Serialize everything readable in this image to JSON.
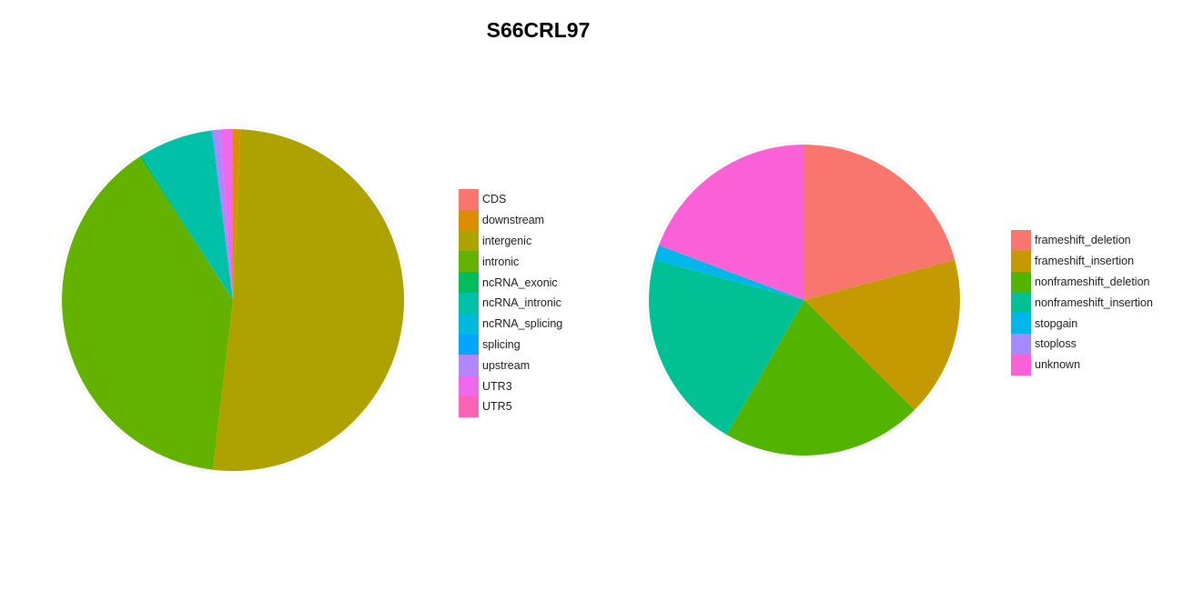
{
  "title": "S66CRL97",
  "chart_data": [
    {
      "type": "pie",
      "title": "",
      "labels": [
        "CDS",
        "downstream",
        "intergenic",
        "intronic",
        "ncRNA_exonic",
        "ncRNA_intronic",
        "ncRNA_splicing",
        "splicing",
        "upstream",
        "UTR3",
        "UTR5"
      ],
      "values": [
        0.0,
        0.7,
        50.7,
        38.6,
        0.2,
        6.9,
        0.1,
        0.0,
        0.7,
        1.2,
        0.0
      ],
      "colors": [
        "#F8766D",
        "#DB8E00",
        "#AEA200",
        "#64B200",
        "#00BD5C",
        "#00C1A7",
        "#00BADE",
        "#00A6FF",
        "#B385FF",
        "#EF67EB",
        "#FF63B6"
      ],
      "legend": "right"
    },
    {
      "type": "pie",
      "title": "",
      "labels": [
        "frameshift_deletion",
        "frameshift_insertion",
        "nonframeshift_deletion",
        "nonframeshift_insertion",
        "stopgain",
        "stoploss",
        "unknown"
      ],
      "values": [
        20.0,
        16.0,
        20.0,
        20.0,
        1.5,
        0.0,
        18.5
      ],
      "colors": [
        "#F8766D",
        "#C49A00",
        "#53B400",
        "#00C094",
        "#00B6EB",
        "#A58AFF",
        "#FB61D7"
      ],
      "legend": "right"
    }
  ]
}
